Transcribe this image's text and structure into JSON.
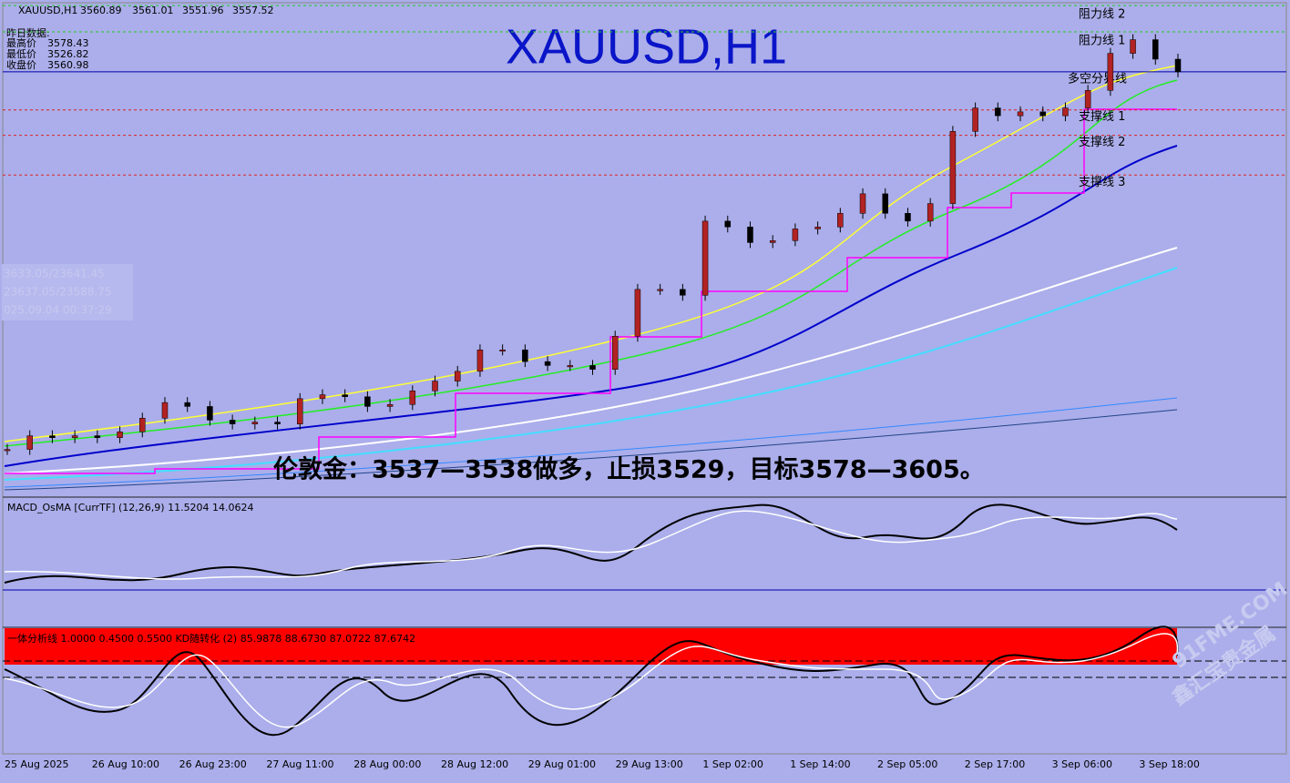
{
  "chart_data": {
    "type": "candlestick",
    "symbol": "XAUUSD,H1",
    "ohlc": [
      3560.89,
      3561.01,
      3551.96,
      3557.52
    ],
    "prev_day": {
      "heading": "昨日数据:",
      "high_label": "最高价",
      "high": 3578.43,
      "low_label": "最低价",
      "low": 3526.82,
      "close_label": "收盘价",
      "close": 3560.98
    },
    "title": "XAUUSD,H1",
    "crosshair": [
      "3633.05/23641.45",
      "23637.05/23588.75",
      "025.09.04 00:37:29"
    ],
    "annotation": "伦敦金：3537—3538做多，止损3529，目标3578—3605。",
    "levels": [
      {
        "label": "阻力线 2",
        "value": 3591.5,
        "color": "#22cc22"
      },
      {
        "label": "阻力线 1",
        "value": 3578,
        "color": "#22cc22"
      },
      {
        "label": "多空分界线",
        "value": 3557.52,
        "color": "#0000aa"
      },
      {
        "label": "支撑线 1",
        "value": 3538,
        "color": "#dd2222"
      },
      {
        "label": "支撑线 2",
        "value": 3525,
        "color": "#dd2222"
      },
      {
        "label": "支撑线 3",
        "value": 3504.6,
        "color": "#dd2222"
      }
    ],
    "ylim": [
      3340,
      3592
    ],
    "close": [
      3364,
      3371,
      3370,
      3371,
      3370,
      3373,
      3380,
      3388,
      3386,
      3379,
      3377,
      3378,
      3377,
      3390,
      3392,
      3391,
      3386,
      3387,
      3394,
      3399,
      3404,
      3415,
      3415,
      3409,
      3407,
      3407,
      3405,
      3422,
      3446,
      3446,
      3443,
      3481,
      3478,
      3470,
      3471,
      3477,
      3478,
      3485,
      3495,
      3485,
      3481,
      3490,
      3527,
      3539,
      3535,
      3537,
      3535,
      3539,
      3548,
      3567,
      3574,
      3564,
      3557.52
    ],
    "x_labels": [
      "25 Aug 2025",
      "26 Aug 10:00",
      "26 Aug 23:00",
      "27 Aug 11:00",
      "28 Aug 00:00",
      "28 Aug 12:00",
      "29 Aug 01:00",
      "29 Aug 13:00",
      "1 Sep 02:00",
      "1 Sep 14:00",
      "2 Sep 05:00",
      "2 Sep 17:00",
      "3 Sep 06:00",
      "3 Sep 18:00"
    ],
    "macd_header": "MACD_OsMA [CurrTF] (12,26,9) 11.5204 14.0624",
    "kd_header": "一体分析线 1.0000 0.4500 0.5500  KD随转化 (2) 85.9878 88.6730 87.0722 87.6742",
    "watermark": [
      "91FME.COM",
      "鑫汇宝贵金属"
    ]
  }
}
